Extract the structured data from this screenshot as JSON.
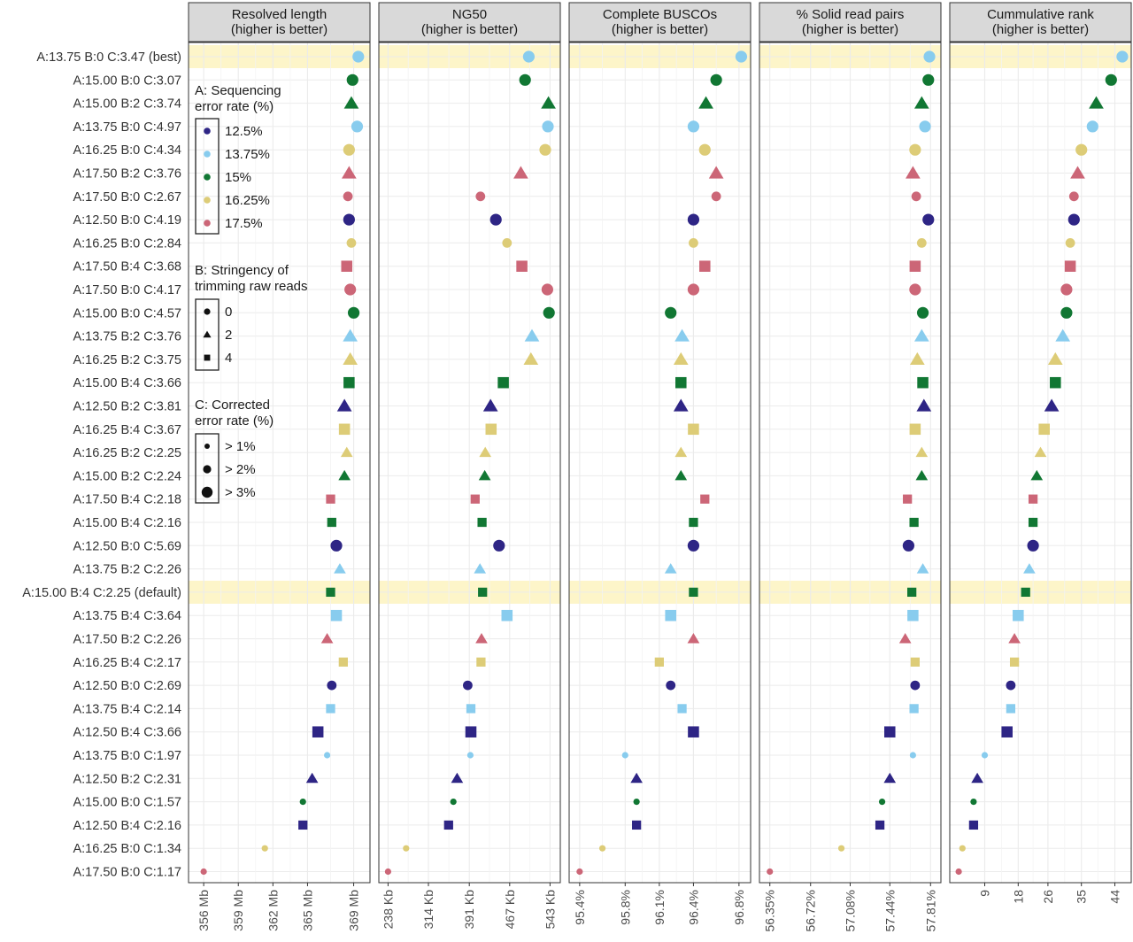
{
  "chart_data": {
    "type": "scatter",
    "rows": [
      "A:13.75 B:0 C:3.47 (best)",
      "A:15.00 B:0 C:3.07",
      "A:15.00 B:2 C:3.74",
      "A:13.75 B:0 C:4.97",
      "A:16.25 B:0 C:4.34",
      "A:17.50 B:2 C:3.76",
      "A:17.50 B:0 C:2.67",
      "A:12.50 B:0 C:4.19",
      "A:16.25 B:0 C:2.84",
      "A:17.50 B:4 C:3.68",
      "A:17.50 B:0 C:4.17",
      "A:15.00 B:0 C:4.57",
      "A:13.75 B:2 C:3.76",
      "A:16.25 B:2 C:3.75",
      "A:15.00 B:4 C:3.66",
      "A:12.50 B:2 C:3.81",
      "A:16.25 B:4 C:3.67",
      "A:16.25 B:2 C:2.25",
      "A:15.00 B:2 C:2.24",
      "A:17.50 B:4 C:2.18",
      "A:15.00 B:4 C:2.16",
      "A:12.50 B:0 C:5.69",
      "A:13.75 B:2 C:2.26",
      "A:15.00 B:4 C:2.25 (default)",
      "A:13.75 B:4 C:3.64",
      "A:17.50 B:2 C:2.26",
      "A:16.25 B:4 C:2.17",
      "A:12.50 B:0 C:2.69",
      "A:13.75 B:4 C:2.14",
      "A:12.50 B:4 C:3.66",
      "A:13.75 B:0 C:1.97",
      "A:12.50 B:2 C:2.31",
      "A:15.00 B:0 C:1.57",
      "A:12.50 B:4 C:2.16",
      "A:16.25 B:0 C:1.34",
      "A:17.50 B:0 C:1.17"
    ],
    "highlighted_rows": [
      "A:13.75 B:0 C:3.47 (best)",
      "A:15.00 B:4 C:2.25 (default)"
    ],
    "panels": [
      {
        "title": "Resolved length\n(higher is better)",
        "xlim": [
          355.3,
          369.8
        ],
        "ticks": [
          356,
          359,
          362,
          365,
          369
        ],
        "tick_labels": [
          "356 Mb",
          "359 Mb",
          "362 Mb",
          "365 Mb",
          "369 Mb"
        ],
        "values": [
          369.4,
          368.9,
          368.8,
          369.3,
          368.6,
          368.6,
          368.5,
          368.6,
          368.8,
          368.4,
          368.7,
          369.0,
          368.7,
          368.7,
          368.6,
          368.2,
          368.2,
          368.4,
          368.2,
          367.0,
          367.1,
          367.5,
          367.8,
          367.0,
          367.5,
          366.7,
          368.1,
          367.1,
          367.0,
          365.9,
          366.7,
          365.4,
          364.6,
          364.6,
          361.3,
          356.0
        ]
      },
      {
        "title": "NG50\n(higher is better)",
        "xlim": [
          234,
          549
        ],
        "ticks": [
          238,
          314,
          391,
          467,
          543
        ],
        "tick_labels": [
          "238 Kb",
          "314 Kb",
          "391 Kb",
          "467 Kb",
          "543 Kb"
        ],
        "values": [
          503,
          496,
          540,
          539,
          534,
          488,
          412,
          441,
          462,
          490,
          538,
          541,
          509,
          507,
          455,
          431,
          432,
          421,
          420,
          402,
          415,
          447,
          411,
          416,
          462,
          414,
          413,
          388,
          394,
          394,
          393,
          368,
          361,
          352,
          272,
          238
        ]
      },
      {
        "title": "Complete BUSCOs\n(higher is better)",
        "xlim": [
          95.37,
          96.84
        ],
        "ticks": [
          95.4,
          95.8,
          96.1,
          96.4,
          96.8
        ],
        "tick_labels": [
          "95.4%",
          "95.8%",
          "96.1%",
          "96.4%",
          "96.8%"
        ],
        "values": [
          96.82,
          96.6,
          96.51,
          96.4,
          96.5,
          96.6,
          96.6,
          96.4,
          96.4,
          96.5,
          96.4,
          96.2,
          96.3,
          96.29,
          96.29,
          96.29,
          96.4,
          96.29,
          96.29,
          96.5,
          96.4,
          96.4,
          96.2,
          96.4,
          96.2,
          96.4,
          96.1,
          96.2,
          96.3,
          96.4,
          95.8,
          95.9,
          95.9,
          95.9,
          95.6,
          95.4
        ]
      },
      {
        "title": "% Solid read pairs\n(higher is better)",
        "xlim": [
          56.32,
          57.84
        ],
        "ticks": [
          56.35,
          56.72,
          57.08,
          57.44,
          57.81
        ],
        "tick_labels": [
          "56.35%",
          "56.72%",
          "57.08%",
          "57.44%",
          "57.81%"
        ],
        "values": [
          57.8,
          57.79,
          57.73,
          57.76,
          57.67,
          57.65,
          57.68,
          57.79,
          57.73,
          57.67,
          57.67,
          57.74,
          57.73,
          57.69,
          57.74,
          57.75,
          57.67,
          57.73,
          57.73,
          57.6,
          57.66,
          57.61,
          57.74,
          57.64,
          57.65,
          57.58,
          57.67,
          57.67,
          57.66,
          57.44,
          57.65,
          57.44,
          57.37,
          57.35,
          57.0,
          56.35
        ]
      },
      {
        "title": "Cummulative rank\n(higher is better)",
        "xlim": [
          1.5,
          46.5
        ],
        "ticks": [
          9,
          18,
          26,
          35,
          44
        ],
        "tick_labels": [
          "9",
          "18",
          "26",
          "35",
          "44"
        ],
        "values": [
          46,
          43,
          39,
          38,
          35,
          34,
          33,
          33,
          32,
          32,
          31,
          31,
          30,
          28,
          28,
          27,
          25,
          24,
          23,
          22,
          22,
          22,
          21,
          20,
          18,
          17,
          17,
          16,
          16,
          15,
          9,
          7,
          6,
          6,
          3,
          2
        ]
      }
    ],
    "legend": {
      "placement": "left-inside-first-panel",
      "A": {
        "title": "A: Sequencing\nerror rate (%)",
        "items": [
          {
            "label": "12.5%",
            "color": "#2e2585"
          },
          {
            "label": "13.75%",
            "color": "#88ccee"
          },
          {
            "label": "15%",
            "color": "#117733"
          },
          {
            "label": "16.25%",
            "color": "#ddcc77"
          },
          {
            "label": "17.5%",
            "color": "#cc6677"
          }
        ]
      },
      "B": {
        "title": "B: Stringency of\ntrimming raw reads",
        "items": [
          {
            "label": "0",
            "shape": "circle"
          },
          {
            "label": "2",
            "shape": "triangle"
          },
          {
            "label": "4",
            "shape": "square"
          }
        ]
      },
      "C": {
        "title": "C: Corrected\nerror rate (%)",
        "items": [
          {
            "label": "> 1%",
            "size": "small"
          },
          {
            "label": "> 2%",
            "size": "medium"
          },
          {
            "label": "> 3%",
            "size": "large"
          }
        ]
      }
    },
    "grid": true,
    "colors": {
      "highlight_band": "#fdf5c9",
      "strip_background": "#d9d9d9",
      "panel_border": "#333333",
      "grid": "#ebebeb"
    }
  }
}
